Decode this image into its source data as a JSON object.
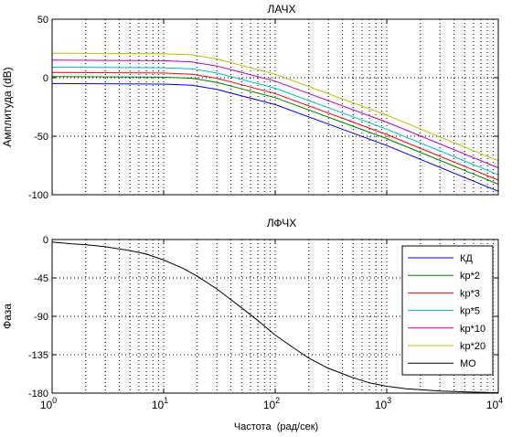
{
  "chart_data": [
    {
      "type": "line",
      "title": "ЛАЧХ",
      "xlabel": "",
      "ylabel": "Амплитуда (dB)",
      "xscale": "log",
      "xlim": [
        1,
        10000
      ],
      "ylim": [
        -100,
        50
      ],
      "yticks": [
        -100,
        -50,
        0,
        50
      ],
      "ytick_labels": [
        "-100",
        "-50",
        "0",
        "50"
      ],
      "grid": "dotted, major and minor",
      "series": [
        {
          "key": "kd",
          "color": "#0000ff",
          "x": [
            1,
            10,
            18,
            30,
            100,
            1000,
            10000
          ],
          "y": [
            -5,
            -5.5,
            -6.5,
            -10,
            -23,
            -58,
            -97
          ]
        },
        {
          "key": "kp2",
          "color": "#008000",
          "x": [
            1,
            10,
            18,
            30,
            100,
            1000,
            10000
          ],
          "y": [
            1,
            0.5,
            -0.5,
            -4,
            -17,
            -52,
            -91
          ]
        },
        {
          "key": "kp3",
          "color": "#ff0000",
          "x": [
            1,
            10,
            18,
            30,
            100,
            1000,
            10000
          ],
          "y": [
            4.5,
            4,
            3,
            -0.5,
            -13.5,
            -48.5,
            -87.5
          ]
        },
        {
          "key": "kp5",
          "color": "#00bfbf",
          "x": [
            1,
            10,
            18,
            30,
            100,
            1000,
            10000
          ],
          "y": [
            9,
            8.5,
            7.5,
            4,
            -9,
            -44,
            -83
          ]
        },
        {
          "key": "kp10",
          "color": "#bf00bf",
          "x": [
            1,
            10,
            18,
            30,
            100,
            1000,
            10000
          ],
          "y": [
            15,
            14.5,
            13.5,
            10,
            -3,
            -38,
            -77
          ]
        },
        {
          "key": "kp20",
          "color": "#bfbf00",
          "x": [
            1,
            10,
            18,
            30,
            100,
            1000,
            10000
          ],
          "y": [
            21,
            20.5,
            19.5,
            16,
            3,
            -32,
            -71
          ]
        }
      ]
    },
    {
      "type": "line",
      "title": "ЛФЧХ",
      "xlabel": "Частота  (рад/сек)",
      "ylabel": "Фаза",
      "xscale": "log",
      "xlim": [
        1,
        10000
      ],
      "ylim": [
        -180,
        0
      ],
      "yticks": [
        -180,
        -135,
        -90,
        -45,
        0
      ],
      "ytick_labels": [
        "-180",
        "-135",
        "-90",
        "-45",
        "0"
      ],
      "xtick_exponents": [
        "0",
        "1",
        "2",
        "3",
        "4"
      ],
      "grid": "dotted, major and minor",
      "legend_position": "right",
      "legend": [
        {
          "name": "КД",
          "color": "#0000ff"
        },
        {
          "name": "kp*2",
          "color": "#008000"
        },
        {
          "name": "kp*3",
          "color": "#ff0000"
        },
        {
          "name": "kp*5",
          "color": "#00bfbf"
        },
        {
          "name": "kp*10",
          "color": "#bf00bf"
        },
        {
          "name": "kp*20",
          "color": "#bfbf00"
        },
        {
          "name": "МО",
          "color": "#000000"
        }
      ],
      "series": [
        {
          "key": "mo",
          "color": "#000000",
          "x": [
            1,
            1.5,
            2,
            3,
            5,
            7,
            10,
            15,
            20,
            30,
            50,
            70,
            100,
            150,
            200,
            300,
            500,
            700,
            1000,
            1500,
            2000,
            3000,
            5000,
            7000,
            10000
          ],
          "y": [
            -3,
            -5,
            -6,
            -8.5,
            -13,
            -17,
            -24,
            -34,
            -43,
            -58,
            -80,
            -95,
            -112,
            -128,
            -139,
            -151,
            -162,
            -168,
            -172,
            -175,
            -176,
            -177.5,
            -178.5,
            -179,
            -179.5
          ]
        }
      ]
    }
  ]
}
